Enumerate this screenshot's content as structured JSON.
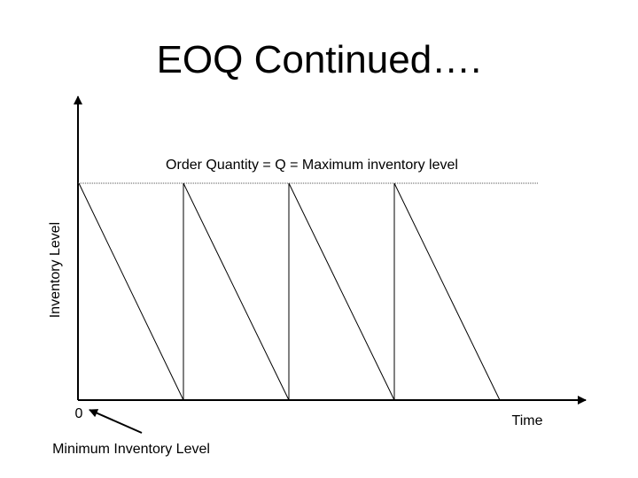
{
  "slide": {
    "title": "EOQ Continued…."
  },
  "diagram": {
    "max_level_label": "Order Quantity = Q = Maximum inventory level",
    "y_axis_label": "Inventory Level",
    "x_axis_label": "Time",
    "origin_label": "0",
    "min_level_label": "Minimum Inventory Level",
    "cycles": 4,
    "line_color": "#000000",
    "reference_line_color": "#555555"
  }
}
